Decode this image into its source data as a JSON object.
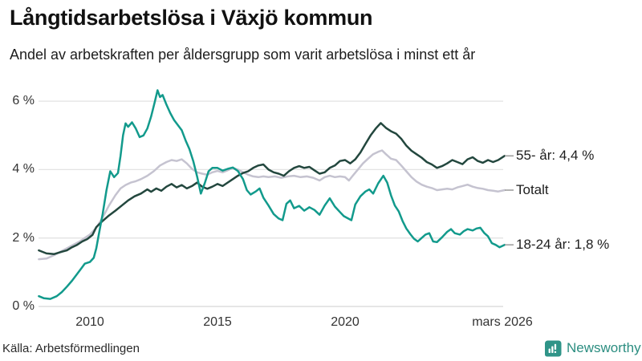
{
  "header": {
    "title": "Långtidsarbetslösa i Växjö kommun",
    "subtitle": "Andel av arbetskraften per åldersgrupp som varit arbetslösa i minst ett år"
  },
  "footer": {
    "source": "Källa: Arbetsförmedlingen",
    "brand": "Newsworthy"
  },
  "colors": {
    "grid": "#e3e3e3",
    "zero_line": "#d6d6d6",
    "tick_text": "#333333",
    "legend_dash": "#999999",
    "brand_teal": "#2f9488"
  },
  "chart_data": {
    "type": "line",
    "title": "Långtidsarbetslösa i Växjö kommun",
    "subtitle": "Andel av arbetskraften per åldersgrupp som varit arbetslösa i minst ett år",
    "unit": "%",
    "x_range": [
      2008.0,
      2026.25
    ],
    "ylim": [
      0,
      6.5
    ],
    "grid": "horizontal",
    "legend_position": "right-of-line-ends",
    "y_ticks": [
      {
        "value": 6,
        "label": "6 %"
      },
      {
        "value": 4,
        "label": "4 %"
      },
      {
        "value": 2,
        "label": "2 %"
      },
      {
        "value": 0,
        "label": "0 %"
      }
    ],
    "x_ticks": [
      {
        "year": 2010,
        "label": "2010"
      },
      {
        "year": 2015,
        "label": "2015"
      },
      {
        "year": 2020,
        "label": "2020"
      },
      {
        "year": 2026.17,
        "label": "mars 2026"
      }
    ],
    "series": [
      {
        "name": "Totalt",
        "legend": "Totalt",
        "end_value": 3.4,
        "color": "#c5c3d0",
        "points": [
          [
            2008.0,
            1.38
          ],
          [
            2008.3,
            1.4
          ],
          [
            2008.6,
            1.5
          ],
          [
            2008.9,
            1.62
          ],
          [
            2009.1,
            1.7
          ],
          [
            2009.35,
            1.8
          ],
          [
            2009.6,
            1.9
          ],
          [
            2009.8,
            2.0
          ],
          [
            2010.0,
            2.1
          ],
          [
            2010.25,
            2.3
          ],
          [
            2010.5,
            2.6
          ],
          [
            2010.75,
            2.95
          ],
          [
            2011.0,
            3.25
          ],
          [
            2011.2,
            3.45
          ],
          [
            2011.4,
            3.55
          ],
          [
            2011.6,
            3.62
          ],
          [
            2011.8,
            3.66
          ],
          [
            2012.0,
            3.72
          ],
          [
            2012.25,
            3.82
          ],
          [
            2012.5,
            3.95
          ],
          [
            2012.75,
            4.12
          ],
          [
            2013.0,
            4.22
          ],
          [
            2013.2,
            4.28
          ],
          [
            2013.4,
            4.25
          ],
          [
            2013.6,
            4.3
          ],
          [
            2013.8,
            4.18
          ],
          [
            2014.0,
            4.02
          ],
          [
            2014.2,
            3.92
          ],
          [
            2014.4,
            3.88
          ],
          [
            2014.6,
            3.85
          ],
          [
            2014.8,
            3.92
          ],
          [
            2015.0,
            3.96
          ],
          [
            2015.2,
            3.92
          ],
          [
            2015.4,
            3.98
          ],
          [
            2015.6,
            4.05
          ],
          [
            2015.8,
            4.0
          ],
          [
            2016.0,
            3.92
          ],
          [
            2016.2,
            3.85
          ],
          [
            2016.4,
            3.8
          ],
          [
            2016.6,
            3.78
          ],
          [
            2016.8,
            3.8
          ],
          [
            2017.0,
            3.78
          ],
          [
            2017.25,
            3.8
          ],
          [
            2017.5,
            3.76
          ],
          [
            2017.75,
            3.8
          ],
          [
            2018.0,
            3.82
          ],
          [
            2018.25,
            3.78
          ],
          [
            2018.5,
            3.8
          ],
          [
            2018.75,
            3.76
          ],
          [
            2019.0,
            3.68
          ],
          [
            2019.2,
            3.78
          ],
          [
            2019.4,
            3.82
          ],
          [
            2019.6,
            3.78
          ],
          [
            2019.8,
            3.8
          ],
          [
            2020.0,
            3.78
          ],
          [
            2020.15,
            3.68
          ],
          [
            2020.3,
            3.82
          ],
          [
            2020.5,
            4.0
          ],
          [
            2020.7,
            4.18
          ],
          [
            2020.9,
            4.32
          ],
          [
            2021.1,
            4.45
          ],
          [
            2021.3,
            4.52
          ],
          [
            2021.45,
            4.56
          ],
          [
            2021.6,
            4.45
          ],
          [
            2021.8,
            4.32
          ],
          [
            2022.0,
            4.28
          ],
          [
            2022.2,
            4.12
          ],
          [
            2022.4,
            3.95
          ],
          [
            2022.6,
            3.78
          ],
          [
            2022.8,
            3.65
          ],
          [
            2023.0,
            3.56
          ],
          [
            2023.2,
            3.5
          ],
          [
            2023.4,
            3.46
          ],
          [
            2023.6,
            3.4
          ],
          [
            2023.8,
            3.42
          ],
          [
            2024.0,
            3.44
          ],
          [
            2024.2,
            3.42
          ],
          [
            2024.4,
            3.48
          ],
          [
            2024.6,
            3.52
          ],
          [
            2024.8,
            3.56
          ],
          [
            2025.0,
            3.5
          ],
          [
            2025.2,
            3.46
          ],
          [
            2025.4,
            3.44
          ],
          [
            2025.6,
            3.4
          ],
          [
            2025.8,
            3.38
          ],
          [
            2026.0,
            3.36
          ],
          [
            2026.25,
            3.4
          ]
        ]
      },
      {
        "name": "55- år",
        "legend": "55- år: 4,4 %",
        "end_value": 4.4,
        "color": "#23473e",
        "points": [
          [
            2008.0,
            1.64
          ],
          [
            2008.3,
            1.55
          ],
          [
            2008.6,
            1.53
          ],
          [
            2008.9,
            1.6
          ],
          [
            2009.1,
            1.64
          ],
          [
            2009.3,
            1.73
          ],
          [
            2009.5,
            1.8
          ],
          [
            2009.7,
            1.9
          ],
          [
            2009.9,
            1.97
          ],
          [
            2010.1,
            2.09
          ],
          [
            2010.25,
            2.32
          ],
          [
            2010.5,
            2.5
          ],
          [
            2010.75,
            2.66
          ],
          [
            2011.0,
            2.8
          ],
          [
            2011.25,
            2.95
          ],
          [
            2011.5,
            3.1
          ],
          [
            2011.75,
            3.22
          ],
          [
            2012.0,
            3.3
          ],
          [
            2012.25,
            3.42
          ],
          [
            2012.4,
            3.35
          ],
          [
            2012.6,
            3.45
          ],
          [
            2012.8,
            3.38
          ],
          [
            2013.0,
            3.5
          ],
          [
            2013.2,
            3.58
          ],
          [
            2013.4,
            3.48
          ],
          [
            2013.6,
            3.55
          ],
          [
            2013.8,
            3.45
          ],
          [
            2014.0,
            3.52
          ],
          [
            2014.2,
            3.62
          ],
          [
            2014.4,
            3.5
          ],
          [
            2014.6,
            3.44
          ],
          [
            2014.8,
            3.5
          ],
          [
            2015.0,
            3.58
          ],
          [
            2015.2,
            3.52
          ],
          [
            2015.4,
            3.62
          ],
          [
            2015.6,
            3.72
          ],
          [
            2015.8,
            3.82
          ],
          [
            2016.0,
            3.9
          ],
          [
            2016.2,
            3.95
          ],
          [
            2016.4,
            4.05
          ],
          [
            2016.6,
            4.12
          ],
          [
            2016.8,
            4.15
          ],
          [
            2017.0,
            4.0
          ],
          [
            2017.2,
            3.92
          ],
          [
            2017.4,
            3.88
          ],
          [
            2017.6,
            3.82
          ],
          [
            2017.8,
            3.95
          ],
          [
            2018.0,
            4.05
          ],
          [
            2018.2,
            4.1
          ],
          [
            2018.4,
            4.05
          ],
          [
            2018.6,
            4.08
          ],
          [
            2018.8,
            3.98
          ],
          [
            2019.0,
            3.88
          ],
          [
            2019.2,
            3.92
          ],
          [
            2019.4,
            4.05
          ],
          [
            2019.6,
            4.12
          ],
          [
            2019.8,
            4.25
          ],
          [
            2020.0,
            4.28
          ],
          [
            2020.2,
            4.18
          ],
          [
            2020.4,
            4.3
          ],
          [
            2020.6,
            4.5
          ],
          [
            2020.8,
            4.75
          ],
          [
            2021.0,
            5.0
          ],
          [
            2021.2,
            5.2
          ],
          [
            2021.4,
            5.36
          ],
          [
            2021.6,
            5.22
          ],
          [
            2021.8,
            5.12
          ],
          [
            2022.0,
            5.05
          ],
          [
            2022.2,
            4.9
          ],
          [
            2022.4,
            4.7
          ],
          [
            2022.6,
            4.55
          ],
          [
            2022.8,
            4.45
          ],
          [
            2023.0,
            4.35
          ],
          [
            2023.2,
            4.22
          ],
          [
            2023.4,
            4.15
          ],
          [
            2023.6,
            4.05
          ],
          [
            2023.8,
            4.1
          ],
          [
            2024.0,
            4.18
          ],
          [
            2024.2,
            4.28
          ],
          [
            2024.4,
            4.22
          ],
          [
            2024.6,
            4.16
          ],
          [
            2024.8,
            4.3
          ],
          [
            2025.0,
            4.36
          ],
          [
            2025.2,
            4.25
          ],
          [
            2025.4,
            4.2
          ],
          [
            2025.6,
            4.28
          ],
          [
            2025.8,
            4.22
          ],
          [
            2026.0,
            4.28
          ],
          [
            2026.25,
            4.4
          ]
        ]
      },
      {
        "name": "18-24 år",
        "legend": "18-24 år: 1,8 %",
        "end_value": 1.8,
        "color": "#129a8c",
        "points": [
          [
            2008.0,
            0.3
          ],
          [
            2008.2,
            0.24
          ],
          [
            2008.45,
            0.22
          ],
          [
            2008.7,
            0.3
          ],
          [
            2008.9,
            0.42
          ],
          [
            2009.1,
            0.58
          ],
          [
            2009.3,
            0.75
          ],
          [
            2009.5,
            0.95
          ],
          [
            2009.65,
            1.1
          ],
          [
            2009.8,
            1.25
          ],
          [
            2010.0,
            1.3
          ],
          [
            2010.15,
            1.42
          ],
          [
            2010.25,
            1.7
          ],
          [
            2010.35,
            2.1
          ],
          [
            2010.5,
            2.7
          ],
          [
            2010.65,
            3.4
          ],
          [
            2010.8,
            3.95
          ],
          [
            2010.95,
            3.78
          ],
          [
            2011.1,
            3.9
          ],
          [
            2011.2,
            4.4
          ],
          [
            2011.3,
            5.0
          ],
          [
            2011.4,
            5.35
          ],
          [
            2011.5,
            5.25
          ],
          [
            2011.65,
            5.38
          ],
          [
            2011.8,
            5.2
          ],
          [
            2011.95,
            4.95
          ],
          [
            2012.1,
            5.0
          ],
          [
            2012.25,
            5.2
          ],
          [
            2012.4,
            5.55
          ],
          [
            2012.55,
            6.0
          ],
          [
            2012.65,
            6.32
          ],
          [
            2012.75,
            6.12
          ],
          [
            2012.85,
            6.18
          ],
          [
            2013.0,
            5.9
          ],
          [
            2013.15,
            5.65
          ],
          [
            2013.3,
            5.45
          ],
          [
            2013.45,
            5.3
          ],
          [
            2013.6,
            5.15
          ],
          [
            2013.75,
            4.85
          ],
          [
            2013.9,
            4.6
          ],
          [
            2014.05,
            4.25
          ],
          [
            2014.2,
            3.8
          ],
          [
            2014.35,
            3.3
          ],
          [
            2014.5,
            3.6
          ],
          [
            2014.65,
            3.95
          ],
          [
            2014.8,
            4.05
          ],
          [
            2015.0,
            4.05
          ],
          [
            2015.2,
            3.97
          ],
          [
            2015.4,
            4.02
          ],
          [
            2015.6,
            4.06
          ],
          [
            2015.8,
            3.96
          ],
          [
            2016.0,
            3.72
          ],
          [
            2016.15,
            3.4
          ],
          [
            2016.3,
            3.27
          ],
          [
            2016.5,
            3.36
          ],
          [
            2016.65,
            3.45
          ],
          [
            2016.8,
            3.18
          ],
          [
            2017.0,
            2.95
          ],
          [
            2017.2,
            2.7
          ],
          [
            2017.4,
            2.57
          ],
          [
            2017.55,
            2.52
          ],
          [
            2017.7,
            3.0
          ],
          [
            2017.85,
            3.1
          ],
          [
            2018.0,
            2.87
          ],
          [
            2018.2,
            2.94
          ],
          [
            2018.4,
            2.8
          ],
          [
            2018.6,
            2.9
          ],
          [
            2018.8,
            2.82
          ],
          [
            2019.0,
            2.68
          ],
          [
            2019.2,
            2.95
          ],
          [
            2019.4,
            3.16
          ],
          [
            2019.6,
            2.92
          ],
          [
            2019.8,
            2.76
          ],
          [
            2019.95,
            2.64
          ],
          [
            2020.1,
            2.58
          ],
          [
            2020.25,
            2.52
          ],
          [
            2020.4,
            2.98
          ],
          [
            2020.6,
            3.22
          ],
          [
            2020.8,
            3.36
          ],
          [
            2020.95,
            3.42
          ],
          [
            2021.1,
            3.3
          ],
          [
            2021.3,
            3.6
          ],
          [
            2021.5,
            3.82
          ],
          [
            2021.65,
            3.62
          ],
          [
            2021.8,
            3.25
          ],
          [
            2021.95,
            2.95
          ],
          [
            2022.1,
            2.78
          ],
          [
            2022.25,
            2.5
          ],
          [
            2022.4,
            2.28
          ],
          [
            2022.55,
            2.12
          ],
          [
            2022.7,
            1.98
          ],
          [
            2022.85,
            1.9
          ],
          [
            2023.0,
            2.0
          ],
          [
            2023.15,
            2.1
          ],
          [
            2023.3,
            2.14
          ],
          [
            2023.45,
            1.9
          ],
          [
            2023.6,
            1.88
          ],
          [
            2023.8,
            2.02
          ],
          [
            2024.0,
            2.18
          ],
          [
            2024.15,
            2.26
          ],
          [
            2024.3,
            2.14
          ],
          [
            2024.5,
            2.1
          ],
          [
            2024.65,
            2.2
          ],
          [
            2024.8,
            2.26
          ],
          [
            2025.0,
            2.22
          ],
          [
            2025.15,
            2.28
          ],
          [
            2025.3,
            2.3
          ],
          [
            2025.45,
            2.15
          ],
          [
            2025.6,
            2.05
          ],
          [
            2025.75,
            1.85
          ],
          [
            2025.9,
            1.8
          ],
          [
            2026.05,
            1.73
          ],
          [
            2026.25,
            1.8
          ]
        ]
      }
    ]
  }
}
